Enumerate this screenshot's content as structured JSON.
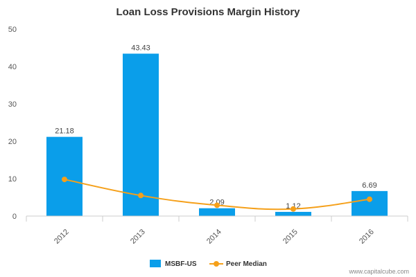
{
  "chart_data": {
    "type": "bar",
    "title": "Loan Loss Provisions Margin History",
    "xlabel": "",
    "ylabel": "",
    "categories": [
      "2012",
      "2013",
      "2014",
      "2015",
      "2016"
    ],
    "ylim": [
      0,
      50
    ],
    "yticks": [
      "0",
      "10",
      "20",
      "30",
      "40",
      "50"
    ],
    "grid": false,
    "legend_placement": "bottom-center",
    "series": [
      {
        "name": "MSBF-US",
        "kind": "bar",
        "color": "#0a9eea",
        "values": [
          21.18,
          43.43,
          2.09,
          1.12,
          6.69
        ],
        "labels": [
          "21.18",
          "43.43",
          "2.09",
          "1.12",
          "6.69"
        ]
      },
      {
        "name": "Peer Median",
        "kind": "line",
        "color": "#f5a01a",
        "values": [
          9.8,
          5.5,
          2.9,
          1.9,
          4.5
        ]
      }
    ]
  },
  "watermark": "www.capitalcube.com"
}
